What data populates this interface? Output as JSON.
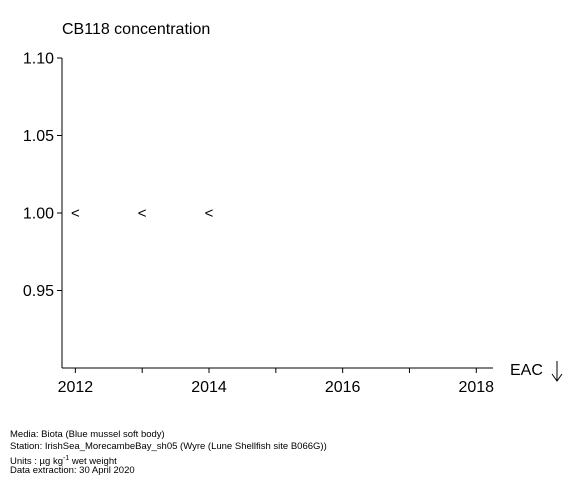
{
  "chart_data": {
    "type": "scatter",
    "title": "CB118 concentration",
    "xlabel": "",
    "ylabel": "",
    "xlim": [
      2011.8,
      2018.25
    ],
    "ylim": [
      0.9,
      1.1
    ],
    "x_ticks": [
      2012,
      2013,
      2014,
      2015,
      2016,
      2017,
      2018
    ],
    "x_tick_labels": [
      {
        "value": 2012,
        "label": "2012"
      },
      {
        "value": 2014,
        "label": "2014"
      },
      {
        "value": 2016,
        "label": "2016"
      },
      {
        "value": 2018,
        "label": "2018"
      }
    ],
    "y_ticks": [
      {
        "value": 0.95,
        "label": "0.95"
      },
      {
        "value": 1.0,
        "label": "1.00"
      },
      {
        "value": 1.05,
        "label": "1.05"
      },
      {
        "value": 1.1,
        "label": "1.10"
      }
    ],
    "grid": false,
    "points": [
      {
        "x": 2012,
        "y": 1.0,
        "marker": "<"
      },
      {
        "x": 2013,
        "y": 1.0,
        "marker": "<"
      },
      {
        "x": 2014,
        "y": 1.0,
        "marker": "<"
      }
    ],
    "annotation": {
      "label": "EAC",
      "arrow": "↓"
    }
  },
  "footer": {
    "media": "Media: Biota (Blue mussel soft body)",
    "station": "Station: IrishSea_MorecambeBay_sh05 (Wyre (Lune Shellfish site B066G))",
    "units_prefix": "Units : µg kg",
    "units_exp": "-1",
    "units_suffix": " wet weight",
    "extraction": "Data extraction: 30 April 2020"
  }
}
